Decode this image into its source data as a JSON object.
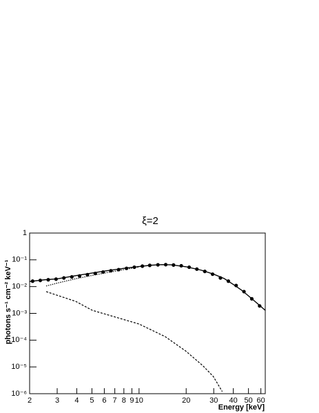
{
  "chart_data": {
    "type": "line",
    "title": "ξ=2",
    "x_label": "Energy [keV]",
    "y_label": "photons s⁻¹ cm⁻² keV⁻¹",
    "xscale": "log",
    "yscale": "log",
    "xlim": [
      2,
      64
    ],
    "ylim": [
      1e-06,
      1
    ],
    "xticks": [
      2,
      3,
      4,
      5,
      6,
      7,
      8,
      9,
      10,
      20,
      30,
      40,
      50,
      60
    ],
    "yticks": [
      {
        "value": 1e-06,
        "label": "10⁻⁶"
      },
      {
        "value": 1e-05,
        "label": "10⁻⁵"
      },
      {
        "value": 0.0001,
        "label": "10⁻⁴"
      },
      {
        "value": 0.001,
        "label": "10⁻³"
      },
      {
        "value": 0.01,
        "label": "10⁻²"
      },
      {
        "value": 0.1,
        "label": "10⁻¹"
      },
      1
    ],
    "series": [
      {
        "style": "markers",
        "color": "#000000",
        "x": [
          2.09,
          2.34,
          2.63,
          2.95,
          3.31,
          3.72,
          4.17,
          4.68,
          5.25,
          5.89,
          6.61,
          7.41,
          8.32,
          9.33,
          10.5,
          11.7,
          13.2,
          14.8,
          16.6,
          18.6,
          20.9,
          23.4,
          26.3,
          29.5,
          33.1,
          37.2,
          41.7,
          46.8,
          52.5,
          58.9
        ],
        "values": [
          0.016,
          0.017,
          0.018,
          0.019,
          0.021,
          0.023,
          0.025,
          0.028,
          0.031,
          0.035,
          0.039,
          0.043,
          0.048,
          0.053,
          0.058,
          0.062,
          0.065,
          0.066,
          0.064,
          0.06,
          0.053,
          0.045,
          0.037,
          0.029,
          0.021,
          0.016,
          0.011,
          0.0065,
          0.0035,
          0.0019
        ]
      },
      {
        "style": "solid",
        "color": "#000000",
        "x": [
          2,
          2.5,
          3,
          4,
          5,
          6,
          8,
          10,
          12,
          14,
          16,
          20,
          25,
          30,
          35,
          40,
          45,
          50,
          55,
          60,
          64
        ],
        "values": [
          0.0155,
          0.018,
          0.0195,
          0.026,
          0.032,
          0.038,
          0.048,
          0.056,
          0.063,
          0.066,
          0.065,
          0.055,
          0.041,
          0.029,
          0.02,
          0.012,
          0.0075,
          0.0045,
          0.0028,
          0.0018,
          0.0013
        ]
      },
      {
        "style": "dotted",
        "color": "#000000",
        "x": [
          2.55,
          3,
          4,
          5,
          6,
          8,
          10
        ],
        "values": [
          0.0105,
          0.0135,
          0.02,
          0.026,
          0.032,
          0.043,
          0.054
        ]
      },
      {
        "style": "dashed",
        "color": "#000000",
        "x": [
          2.55,
          3.94,
          5.03,
          10,
          14.7,
          19.9,
          25.6,
          29.8,
          34
        ],
        "values": [
          0.0065,
          0.0028,
          0.0013,
          0.0004,
          0.000135,
          3.9e-05,
          1.1e-05,
          4.4e-06,
          1.2e-06
        ]
      }
    ]
  }
}
